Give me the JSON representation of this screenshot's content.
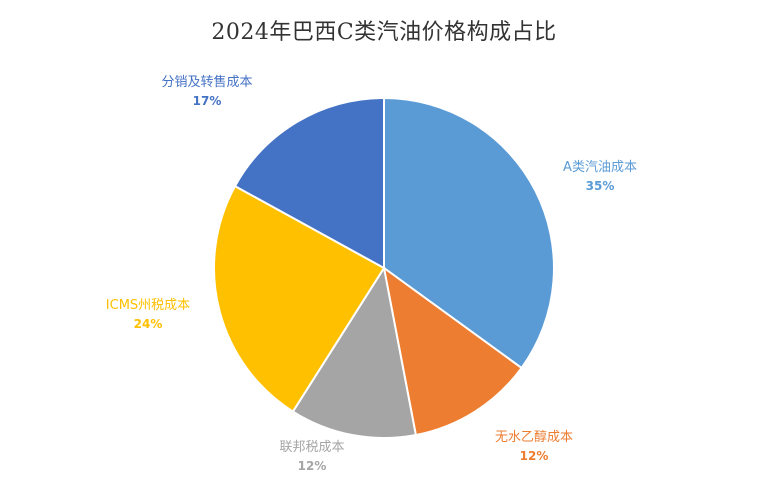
{
  "chart_data": {
    "type": "pie",
    "title": "2024年巴西C类汽油价格构成占比",
    "slices": [
      {
        "name": "A类汽油成本",
        "value": 35,
        "label": "35%",
        "color": "#5B9BD5"
      },
      {
        "name": "无水乙醇成本",
        "value": 12,
        "label": "12%",
        "color": "#ED7D31"
      },
      {
        "name": "联邦税成本",
        "value": 12,
        "label": "12%",
        "color": "#A5A5A5"
      },
      {
        "name": "ICMS州税成本",
        "value": 24,
        "label": "24%",
        "color": "#FFC000"
      },
      {
        "name": "分销及转售成本",
        "value": 17,
        "label": "17%",
        "color": "#4472C4"
      }
    ],
    "start_angle": "12 o'clock",
    "direction": "clockwise",
    "legend": "none"
  }
}
